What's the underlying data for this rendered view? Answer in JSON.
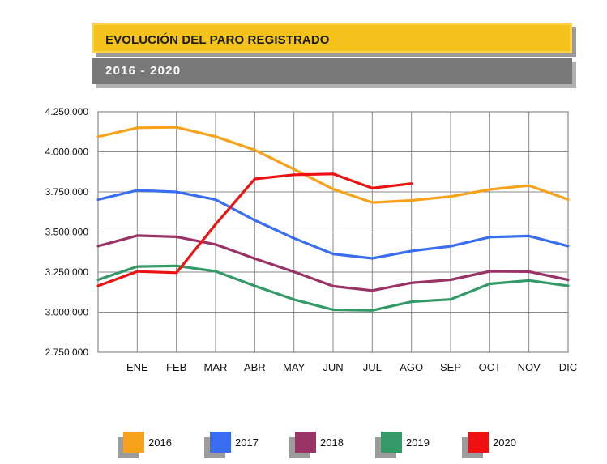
{
  "header": {
    "title": "EVOLUCIÓN DEL PARO REGISTRADO",
    "subtitle": "2016  -  2020"
  },
  "chart_data": {
    "type": "line",
    "title": "EVOLUCIÓN DEL PARO REGISTRADO",
    "subtitle": "2016 - 2020",
    "xlabel": "",
    "ylabel": "",
    "categories": [
      "",
      "ENE",
      "FEB",
      "MAR",
      "ABR",
      "MAY",
      "JUN",
      "JUL",
      "AGO",
      "SEP",
      "OCT",
      "NOV",
      "DIC"
    ],
    "ylim": [
      2750000,
      4250000
    ],
    "yticks": [
      2750000,
      3000000,
      3250000,
      3500000,
      3750000,
      4000000,
      4250000
    ],
    "ytick_labels": [
      "2.750.000",
      "3.000.000",
      "3.250.000",
      "3.500.000",
      "3.750.000",
      "4.000.000",
      "4.250.000"
    ],
    "grid": true,
    "legend_position": "bottom",
    "series": [
      {
        "name": "2016",
        "color": "#f7a21b",
        "values": [
          4094000,
          4150000,
          4153000,
          4095000,
          4011000,
          3891000,
          3767000,
          3684000,
          3697000,
          3721000,
          3765000,
          3790000,
          3702000
        ]
      },
      {
        "name": "2017",
        "color": "#3a6df0",
        "values": [
          3702000,
          3760000,
          3750000,
          3702000,
          3573000,
          3461000,
          3363000,
          3336000,
          3382000,
          3411000,
          3468000,
          3475000,
          3412000
        ]
      },
      {
        "name": "2018",
        "color": "#993366",
        "values": [
          3412000,
          3478000,
          3470000,
          3422000,
          3335000,
          3252000,
          3162000,
          3135000,
          3183000,
          3202000,
          3255000,
          3253000,
          3202000
        ]
      },
      {
        "name": "2019",
        "color": "#339966",
        "values": [
          3202000,
          3285000,
          3289000,
          3255000,
          3164000,
          3079000,
          3015000,
          3011000,
          3065000,
          3080000,
          3177000,
          3198000,
          3164000
        ]
      },
      {
        "name": "2020",
        "color": "#ee1111",
        "values": [
          3164000,
          3254000,
          3246000,
          3548000,
          3831000,
          3857000,
          3862000,
          3773000,
          3802000,
          null,
          null,
          null,
          null
        ]
      }
    ]
  }
}
